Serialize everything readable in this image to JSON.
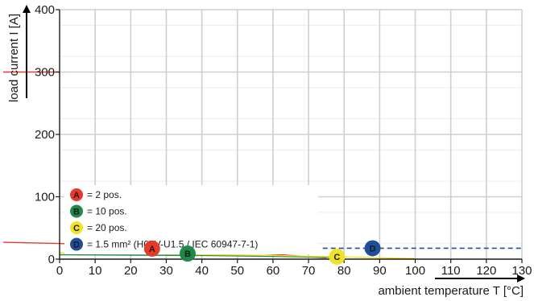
{
  "chart_data": {
    "type": "line",
    "title": "",
    "xlabel": "ambient temperature T [°C]",
    "ylabel": "load current I [A]",
    "xlim": [
      0,
      130
    ],
    "ylim": [
      0,
      400
    ],
    "x_ticks": [
      0,
      10,
      20,
      30,
      40,
      50,
      60,
      70,
      80,
      90,
      100,
      110,
      120,
      130
    ],
    "y_ticks": [
      0,
      100,
      200,
      300,
      400
    ],
    "grid": true,
    "legend": "bottom-left",
    "series": [
      {
        "marker": "A",
        "name": "= 2 pos.",
        "color": "#e8392b",
        "style": "solid",
        "x": [
          -17,
          0,
          10,
          20,
          30,
          40,
          50,
          60,
          70,
          75
        ],
        "y": [
          27,
          25,
          23,
          20,
          17,
          14,
          11,
          8,
          4,
          2
        ]
      },
      {
        "marker": "B",
        "name": "= 10 pos.",
        "color": "#1e8a46",
        "style": "solid",
        "x": [
          0,
          20,
          40,
          60,
          75,
          80
        ],
        "y": [
          7,
          6.5,
          6,
          4.5,
          3,
          2
        ]
      },
      {
        "marker": "C",
        "name": "= 20 pos.",
        "color": "#f0e224",
        "style": "solid",
        "x": [
          0,
          20,
          40,
          60,
          80,
          100
        ],
        "y": [
          10,
          9,
          7.5,
          6,
          3.5,
          1
        ]
      },
      {
        "marker": "D",
        "name": "= 1.5 mm² (H07V-U1.5 / IEC 60947-7-1)",
        "color": "#1f4e9a",
        "style": "dashed",
        "x": [
          74,
          130
        ],
        "y": [
          17.5,
          17.5
        ]
      }
    ],
    "marker_positions": [
      {
        "marker": "A",
        "x": 26,
        "y": 17
      },
      {
        "marker": "B",
        "x": 36,
        "y": 9
      },
      {
        "marker": "C",
        "x": 78,
        "y": 4
      },
      {
        "marker": "D",
        "x": 88,
        "y": 17.5
      }
    ],
    "annotation_line": {
      "y": 300,
      "x": [
        -17,
        0
      ],
      "color": "#e8392b"
    }
  }
}
